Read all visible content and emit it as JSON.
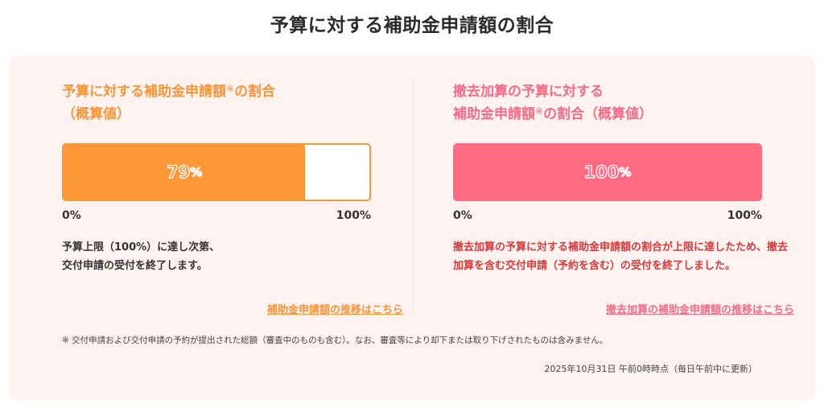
{
  "page": {
    "title": "予算に対する補助金申請額の割合"
  },
  "left": {
    "title_line1": "予算に対する補助金申請額",
    "title_sup": "※",
    "title_line1_after": "の割合",
    "title_line2": "（概算値）",
    "value": 79,
    "value_number": "79",
    "value_unit": "%",
    "axis_min": "0%",
    "axis_max": "100%",
    "note_line1": "予算上限（100%）に達し次第、",
    "note_line2": "交付申請の受付を終了します。",
    "link_label": "補助金申請額の推移はこちら",
    "color": "#fc9837"
  },
  "right": {
    "title_line1": "撤去加算の予算に対する",
    "title_line2_before": "補助金申請額",
    "title_sup": "※",
    "title_line2_after": "の割合（概算値）",
    "value": 100,
    "value_number": "100",
    "value_unit": "%",
    "axis_min": "0%",
    "axis_max": "100%",
    "note": "撤去加算の予算に対する補助金申請額の割合が上限に達したため、撤去加算を含む交付申請（予約を含む）の受付を終了しました。",
    "link_label": "撤去加算の補助金申請額の推移はこちら",
    "color": "#fe6b83"
  },
  "footnote": "※ 交付申請および交付申請の予約が提出された総額（審査中のものも含む）。なお、審査等により却下または取り下げされたものは含みません。",
  "timestamp": "2025年10月31日 午前0時時点（毎日午前中に更新）",
  "chart_data": [
    {
      "type": "bar",
      "orientation": "horizontal",
      "title": "予算に対する補助金申請額※の割合（概算値）",
      "categories": [
        "予算に対する補助金申請額"
      ],
      "values": [
        79
      ],
      "unit": "%",
      "xlim": [
        0,
        100
      ],
      "tick_labels": [
        "0%",
        "100%"
      ],
      "color": "#fc9837",
      "grid": false,
      "legend": "none"
    },
    {
      "type": "bar",
      "orientation": "horizontal",
      "title": "撤去加算の予算に対する補助金申請額※の割合（概算値）",
      "categories": [
        "撤去加算の予算に対する補助金申請額"
      ],
      "values": [
        100
      ],
      "unit": "%",
      "xlim": [
        0,
        100
      ],
      "tick_labels": [
        "0%",
        "100%"
      ],
      "color": "#fe6b83",
      "grid": false,
      "legend": "none"
    }
  ]
}
